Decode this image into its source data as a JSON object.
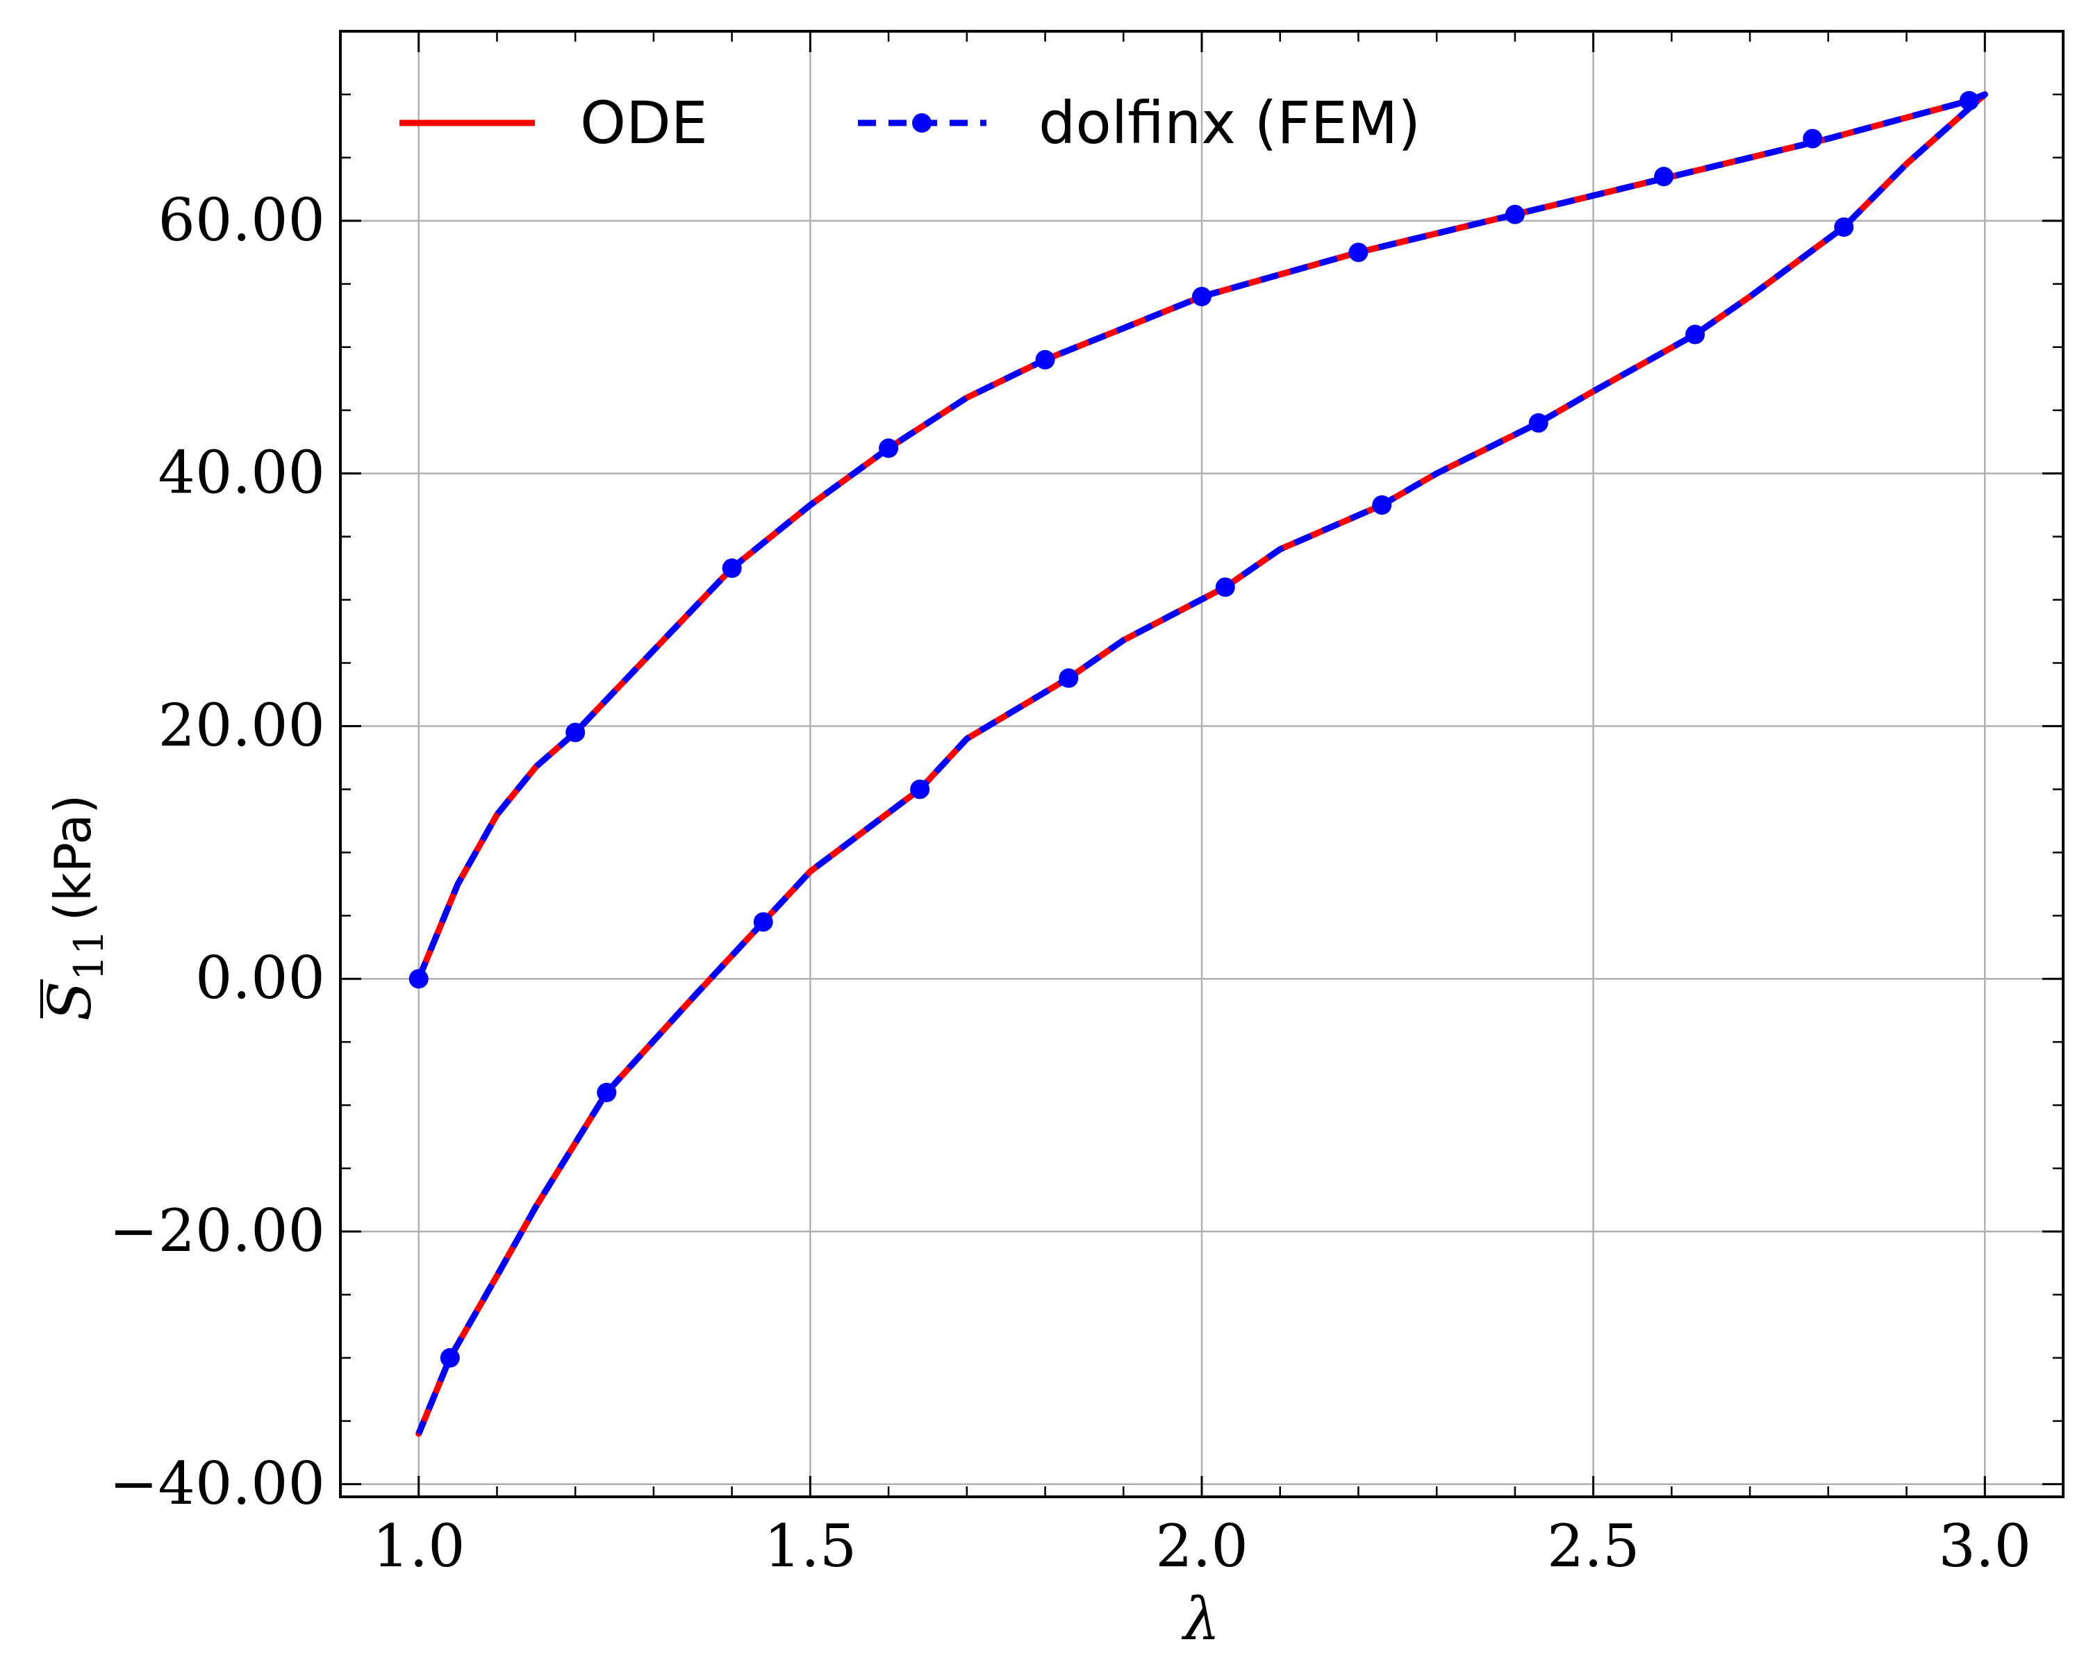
{
  "chart_data": {
    "type": "line",
    "xlabel": "λ",
    "ylabel_symbol": "S",
    "ylabel_subscript": "11",
    "ylabel_unit": "(kPa)",
    "xlim": [
      0.9,
      3.1
    ],
    "ylim": [
      -41,
      75
    ],
    "xticks": [
      1.0,
      1.5,
      2.0,
      2.5,
      3.0
    ],
    "xtick_labels": [
      "1.0",
      "1.5",
      "2.0",
      "2.5",
      "3.0"
    ],
    "yticks": [
      -40,
      -20,
      0,
      20,
      40,
      60
    ],
    "ytick_labels": [
      "−40.00",
      "−20.00",
      "0.00",
      "20.00",
      "40.00",
      "60.00"
    ],
    "grid": true,
    "legend_position": "top",
    "series": [
      {
        "name": "ODE",
        "color": "#ff0000",
        "style": "solid",
        "x": [
          1.0,
          1.05,
          1.1,
          1.15,
          1.2,
          1.3,
          1.4,
          1.5,
          1.6,
          1.7,
          1.8,
          1.9,
          2.0,
          2.2,
          2.4,
          2.6,
          2.8,
          2.98,
          3.0,
          2.9,
          2.82,
          2.7,
          2.63,
          2.5,
          2.43,
          2.3,
          2.23,
          2.1,
          2.03,
          1.9,
          1.83,
          1.7,
          1.64,
          1.5,
          1.44,
          1.35,
          1.24,
          1.15,
          1.1,
          1.04,
          1.0
        ],
        "y": [
          0.0,
          7.5,
          13.0,
          16.8,
          19.5,
          26.0,
          32.5,
          37.5,
          42.0,
          46.0,
          49.0,
          51.5,
          54.0,
          57.5,
          60.5,
          63.5,
          66.5,
          69.5,
          70.0,
          64.5,
          59.5,
          54.0,
          51.0,
          46.5,
          44.0,
          40.0,
          37.5,
          34.0,
          31.0,
          26.8,
          23.8,
          19.0,
          15.0,
          8.5,
          4.5,
          -1.5,
          -9.0,
          -18.0,
          -23.5,
          -30.0,
          -36.0
        ]
      },
      {
        "name": "dolfinx (FEM)",
        "color": "#0000ff",
        "style": "dashed",
        "marker": "circle",
        "markers_x": [
          1.0,
          1.2,
          1.4,
          1.6,
          1.8,
          2.0,
          2.2,
          2.4,
          2.59,
          2.78,
          2.98,
          2.82,
          2.63,
          2.43,
          2.23,
          2.03,
          1.83,
          1.64,
          1.44,
          1.24,
          1.04
        ],
        "markers_y": [
          0.0,
          19.5,
          32.5,
          42.0,
          49.0,
          54.0,
          57.5,
          60.5,
          63.5,
          66.5,
          69.5,
          59.5,
          51.0,
          44.0,
          37.5,
          31.0,
          23.8,
          15.0,
          4.5,
          -9.0,
          -30.0
        ]
      }
    ]
  }
}
